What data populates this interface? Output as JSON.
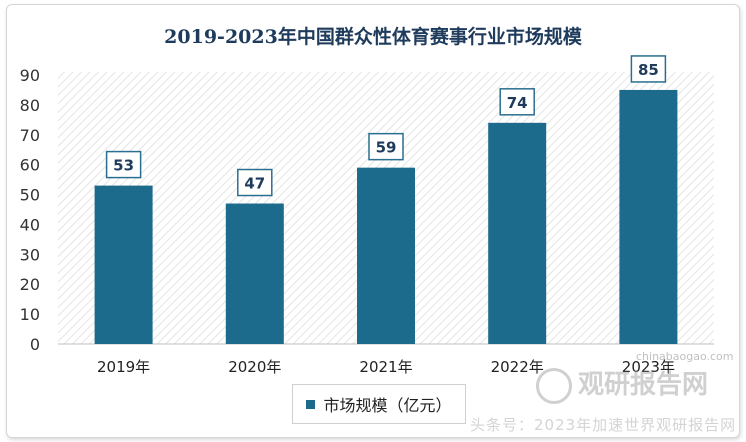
{
  "chart_data": {
    "type": "bar",
    "title": "2019-2023年中国群众性体育赛事行业市场规模",
    "categories": [
      "2019年",
      "2020年",
      "2021年",
      "2022年",
      "2023年"
    ],
    "series": [
      {
        "name": "市场规模（亿元）",
        "values": [
          53,
          47,
          59,
          74,
          85
        ]
      }
    ],
    "ylim": [
      0,
      90
    ],
    "yticks": [
      0,
      10,
      20,
      30,
      40,
      50,
      60,
      70,
      80,
      90
    ],
    "data_labels": [
      "53",
      "47",
      "59",
      "74",
      "85"
    ],
    "grid": false,
    "legend_position": "bottom",
    "bar_color": "#1c6a8c",
    "label_border_color": "#2a6f8f"
  },
  "watermark": {
    "brand": "观研报告网",
    "url": "chinabaogao.com",
    "tagline": "头条号：2023年加速世界观研报告网"
  }
}
